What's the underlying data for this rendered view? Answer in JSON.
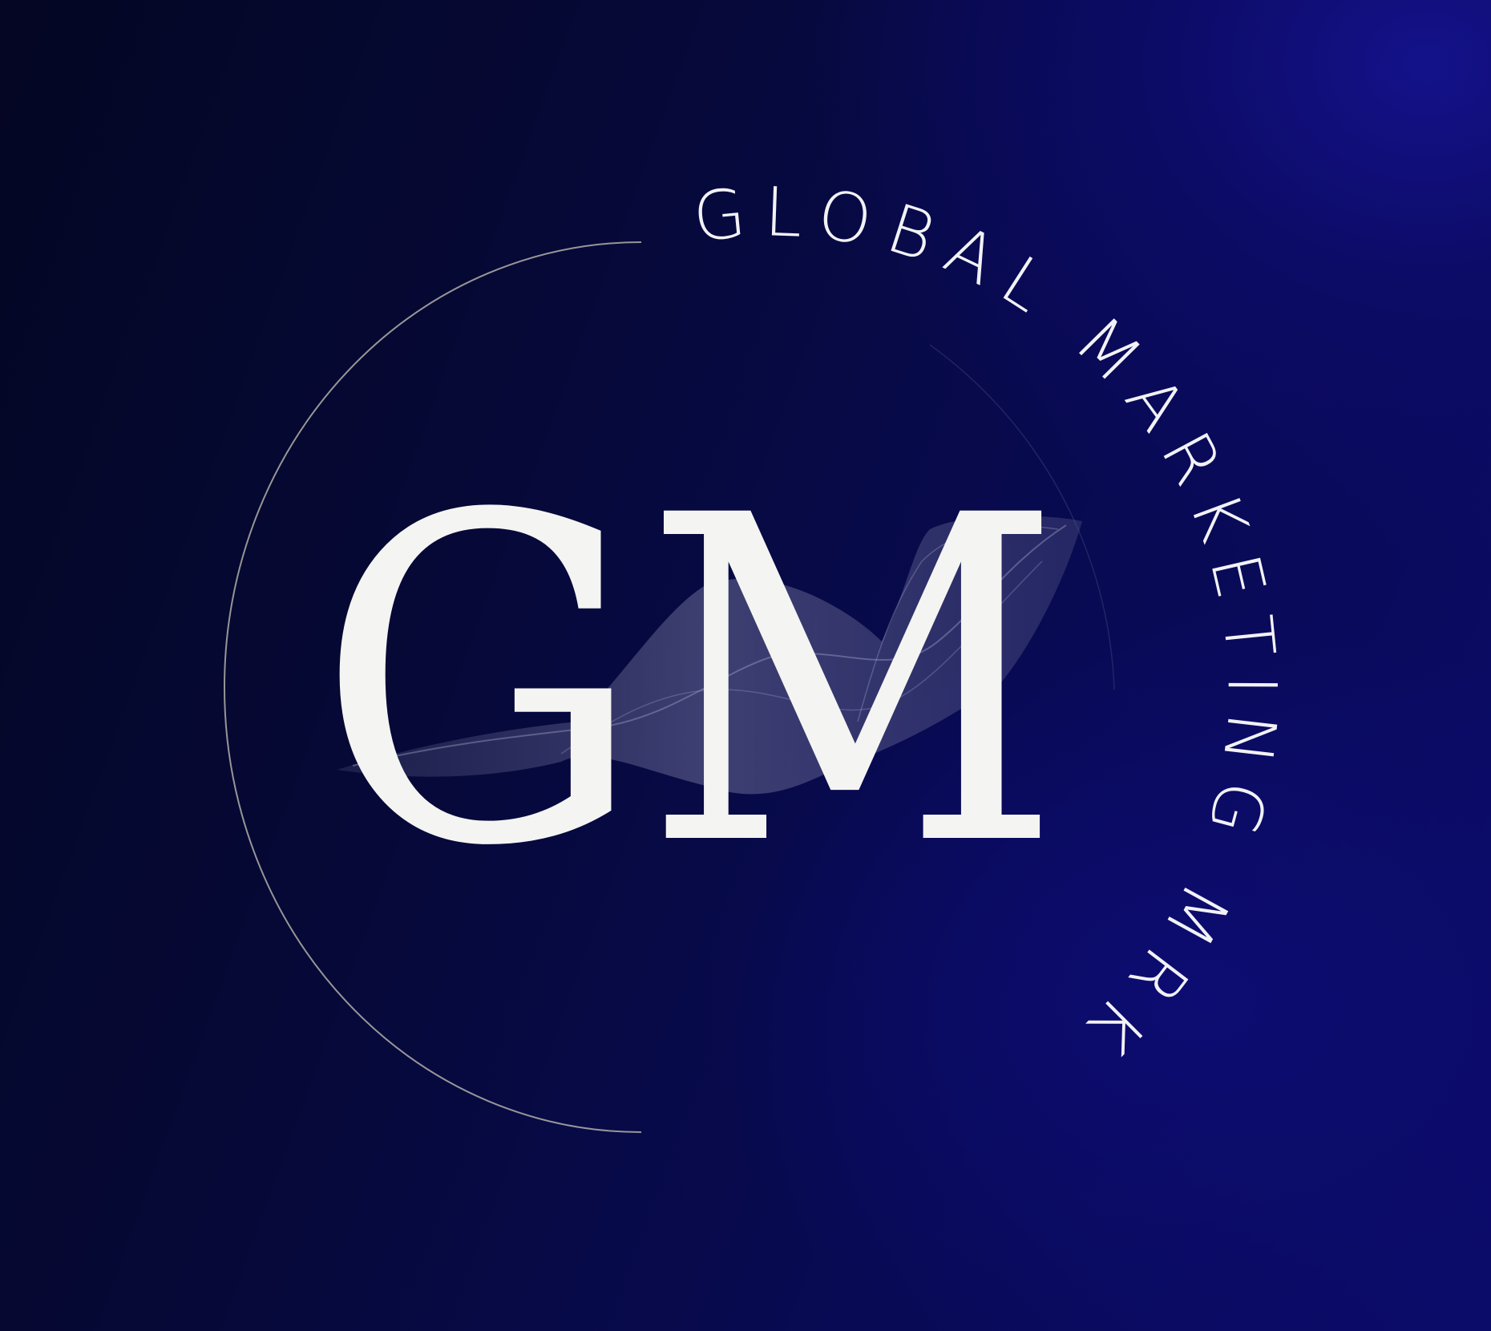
{
  "logo": {
    "monogram": "GM",
    "arc_text": "GLOBAL MARKETING MRK"
  },
  "colors": {
    "background_dark": "#040623",
    "background_bright": "#14128a",
    "text": "#f4f4f2",
    "ring": "#c9c6b8"
  }
}
